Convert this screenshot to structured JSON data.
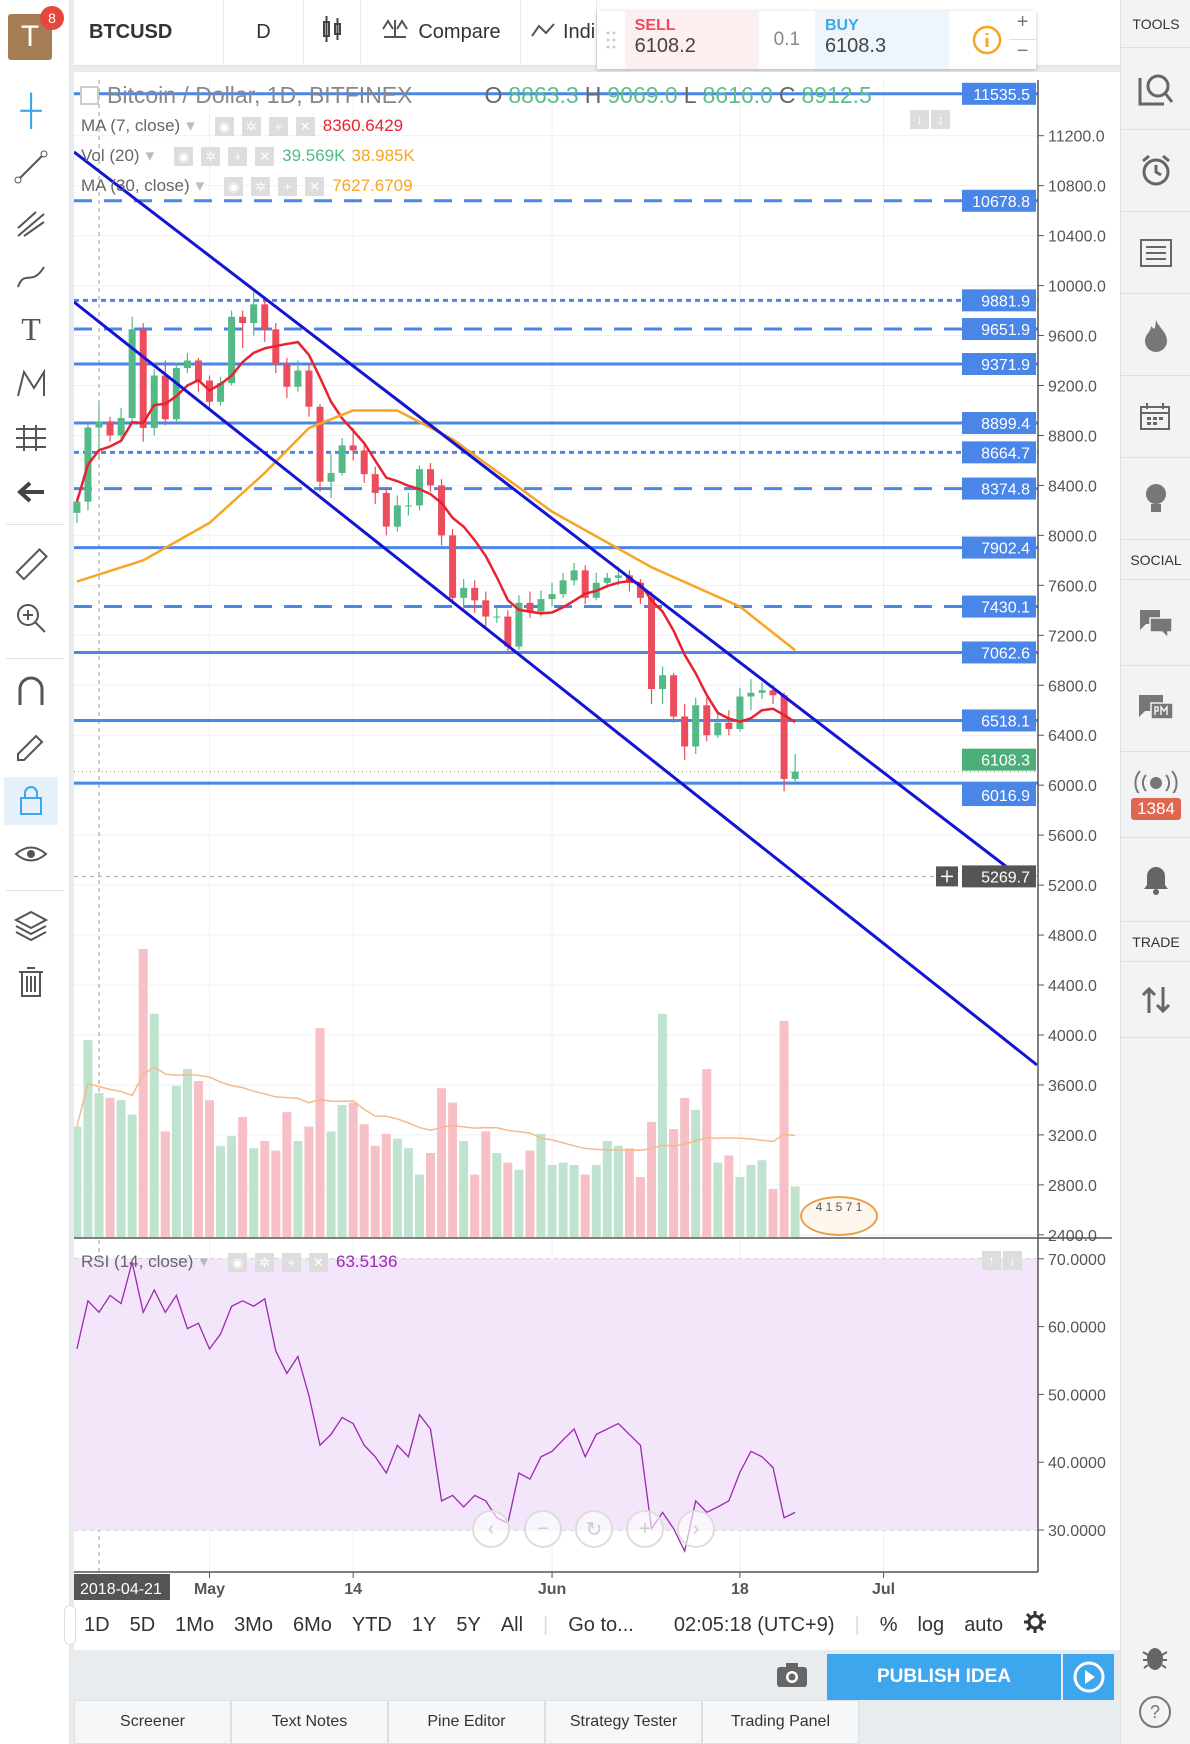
{
  "header": {
    "symbol": "BTCUSD",
    "interval": "D",
    "compare": "Compare",
    "indicators": "Indi",
    "avatar_letter": "T",
    "notif_count": "8"
  },
  "trade_widget": {
    "sell_label": "SELL",
    "sell_price": "6108.2",
    "qty": "0.1",
    "buy_label": "BUY",
    "buy_price": "6108.3",
    "plus": "+",
    "minus": "−"
  },
  "legend": {
    "title": "Bitcoin / Dollar, 1D, BITFINEX",
    "o_label": "O",
    "o": "8863.3",
    "h_label": "H",
    "h": "9069.0",
    "l_label": "L",
    "l": "8616.0",
    "c_label": "C",
    "c": "8912.5",
    "ma7_label": "MA (7, close)",
    "ma7_value": "8360.6429",
    "vol_label": "Vol (20)",
    "vol_value": "39.569K",
    "vol_ma_value": "38.985K",
    "ma30_label": "MA (30, close)",
    "ma30_value": "7627.6709",
    "rsi_label": "RSI (14, close)",
    "rsi_value": "63.5136"
  },
  "colors": {
    "up": "#53b987",
    "down": "#eb4d5c",
    "ma7": "#e8222e",
    "ma30": "#f6a623",
    "level": "#4a86e8",
    "trend": "#1414d4",
    "rsi": "#9c27b0",
    "rsi_band": "#f3e6fb",
    "accent": "#3ea6ec"
  },
  "chart_data": {
    "type": "candlestick",
    "first_day_offset": -2,
    "open": [
      8180,
      8270,
      8863.3,
      8912.5,
      8800,
      8940,
      9650,
      8860,
      9280,
      8930,
      9340,
      9400,
      9240,
      9070,
      9220,
      9750,
      9700,
      9850,
      9650,
      9370,
      9190,
      9320,
      9030,
      8430,
      8500,
      8720,
      8680,
      8490,
      8340,
      8070,
      8240,
      8240,
      8530,
      8400,
      8000,
      7500,
      7580,
      7480,
      7350,
      7350,
      7110,
      7460,
      7390,
      7490,
      7530,
      7640,
      7720,
      7500,
      7620,
      7660,
      7680,
      7620,
      7500,
      6770,
      6880,
      6550,
      6310,
      6640,
      6400,
      6500,
      6450,
      6710,
      6740,
      6760,
      6720,
      6050
    ],
    "high": [
      8300,
      8900,
      9069,
      8950,
      9020,
      9750,
      9700,
      9330,
      9400,
      9380,
      9460,
      9420,
      9280,
      9270,
      9800,
      9800,
      9950,
      9880,
      9700,
      9420,
      9400,
      9370,
      9050,
      8650,
      8780,
      8860,
      8750,
      8550,
      8380,
      8320,
      8340,
      8560,
      8580,
      8450,
      8050,
      7650,
      7640,
      7550,
      7420,
      7400,
      7520,
      7550,
      7560,
      7620,
      7700,
      7780,
      7760,
      7700,
      7700,
      7750,
      7720,
      7650,
      7550,
      6950,
      6900,
      6650,
      6700,
      6700,
      6600,
      6600,
      6780,
      6850,
      6820,
      6800,
      6740,
      6250
    ],
    "low": [
      8100,
      8200,
      8616,
      8750,
      8770,
      8900,
      8750,
      8800,
      8880,
      8900,
      9300,
      9150,
      9000,
      9040,
      9200,
      9500,
      9600,
      9550,
      9300,
      9100,
      9150,
      8950,
      8350,
      8300,
      8480,
      8600,
      8420,
      8250,
      8000,
      8030,
      8160,
      8200,
      8350,
      7920,
      7450,
      7400,
      7380,
      7270,
      7300,
      7050,
      7080,
      7340,
      7350,
      7430,
      7500,
      7600,
      7450,
      7480,
      7580,
      7600,
      7550,
      7450,
      6650,
      6650,
      6500,
      6200,
      6250,
      6350,
      6380,
      6400,
      6430,
      6600,
      6690,
      6650,
      5950,
      6020
    ],
    "close": [
      8270,
      8863.3,
      8912.5,
      8800,
      8940,
      9650,
      8860,
      9280,
      8930,
      9340,
      9400,
      9240,
      9070,
      9220,
      9750,
      9700,
      9850,
      9650,
      9370,
      9190,
      9320,
      9030,
      8430,
      8500,
      8720,
      8680,
      8490,
      8340,
      8070,
      8240,
      8240,
      8530,
      8400,
      8000,
      7500,
      7580,
      7480,
      7350,
      7350,
      7110,
      7460,
      7390,
      7490,
      7530,
      7640,
      7720,
      7500,
      7620,
      7660,
      7680,
      7620,
      7500,
      6770,
      6880,
      6550,
      6310,
      6640,
      6400,
      6500,
      6450,
      6710,
      6740,
      6760,
      6720,
      6050,
      6108.3
    ],
    "volume_k": [
      46,
      82,
      60,
      58,
      57,
      51,
      120,
      93,
      44,
      63,
      70,
      65,
      57,
      38,
      42,
      50,
      37,
      40,
      36,
      52,
      40,
      46,
      87,
      44,
      55,
      56,
      47,
      38,
      43,
      41,
      37,
      26,
      35,
      62,
      56,
      40,
      26,
      44,
      35,
      31,
      28,
      36,
      43,
      30,
      31,
      30,
      26,
      30,
      40,
      38,
      37,
      25,
      48,
      93,
      45,
      58,
      53,
      70,
      31,
      34,
      25,
      30,
      32,
      20,
      90,
      21
    ],
    "ma30_points": [
      [
        -2,
        7630
      ],
      [
        4,
        7800
      ],
      [
        10,
        8100
      ],
      [
        15,
        8500
      ],
      [
        19,
        8860
      ],
      [
        23,
        9000
      ],
      [
        27,
        9000
      ],
      [
        32,
        8770
      ],
      [
        41,
        8190
      ],
      [
        50,
        7745
      ],
      [
        58,
        7430
      ],
      [
        63,
        7080
      ]
    ],
    "rsi": [
      56.7,
      63.8,
      62.1,
      64.6,
      63.4,
      69.5,
      62.1,
      65.4,
      62.1,
      64.6,
      59.7,
      60.5,
      56.7,
      58.9,
      63,
      63.8,
      63,
      64.1,
      56.4,
      53.1,
      55.6,
      49.8,
      42.5,
      44.1,
      46.6,
      45.7,
      42.5,
      40.8,
      38.4,
      42.5,
      40.8,
      47,
      44.9,
      34.3,
      35.1,
      33.4,
      35.1,
      34.3,
      31.8,
      31,
      38.4,
      37.5,
      40.8,
      41.6,
      43.3,
      44.9,
      40.8,
      44.1,
      44.9,
      45.7,
      44.1,
      42.5,
      30.2,
      32.6,
      30.2,
      26.9,
      34.3,
      32.6,
      33.4,
      34.3,
      38.5,
      41.6,
      40.8,
      39.2,
      31.8,
      32.6
    ],
    "price_ticks": [
      "11200.0",
      "10800.0",
      "10400.0",
      "10000.0",
      "9600.0",
      "9200.0",
      "8800.0",
      "8400.0",
      "8000.0",
      "7600.0",
      "7200.0",
      "6800.0",
      "6400.0",
      "6000.0",
      "5600.0",
      "5200.0",
      "4800.0",
      "4400.0",
      "4000.0",
      "3600.0",
      "3200.0",
      "2800.0",
      "2400.0"
    ],
    "rsi_ticks": [
      "70.0000",
      "60.0000",
      "50.0000",
      "40.0000",
      "30.0000"
    ],
    "levels": [
      {
        "price": 11535.5,
        "label": "11535.5",
        "style": "solid"
      },
      {
        "price": 10678.8,
        "label": "10678.8",
        "style": "dashed"
      },
      {
        "price": 9881.9,
        "label": "9881.9",
        "style": "dotted"
      },
      {
        "price": 9651.9,
        "label": "9651.9",
        "style": "dashed"
      },
      {
        "price": 9371.9,
        "label": "9371.9",
        "style": "solid"
      },
      {
        "price": 8899.4,
        "label": "8899.4",
        "style": "solid"
      },
      {
        "price": 8664.7,
        "label": "8664.7",
        "style": "dotted"
      },
      {
        "price": 8374.8,
        "label": "8374.8",
        "style": "dashed"
      },
      {
        "price": 7902.4,
        "label": "7902.4",
        "style": "solid"
      },
      {
        "price": 7430.1,
        "label": "7430.1",
        "style": "dashed"
      },
      {
        "price": 7062.6,
        "label": "7062.6",
        "style": "solid"
      },
      {
        "price": 6518.1,
        "label": "6518.1",
        "style": "solid"
      },
      {
        "price": 6016.9,
        "label": "6016.9",
        "style": "solid"
      }
    ],
    "last_price": {
      "price": 6108.3,
      "label": "6108.3"
    },
    "crosshair": {
      "price": 5269.7,
      "label": "5269.7",
      "date": "2018-04-21",
      "day": 0
    },
    "time_ticks": [
      {
        "label": "May",
        "day": 10
      },
      {
        "label": "14",
        "day": 23
      },
      {
        "label": "Jun",
        "day": 41
      },
      {
        "label": "18",
        "day": 58
      },
      {
        "label": "Jul",
        "day": 71
      }
    ]
  },
  "watermark": "4 1 5 7 1",
  "bottom": {
    "ranges": [
      "1D",
      "5D",
      "1Mo",
      "3Mo",
      "6Mo",
      "YTD",
      "1Y",
      "5Y",
      "All"
    ],
    "goto": "Go to...",
    "clock": "02:05:18 (UTC+9)",
    "percent": "%",
    "log": "log",
    "auto": "auto",
    "publish": "PUBLISH IDEA"
  },
  "tabs": [
    "Screener",
    "Text Notes",
    "Pine Editor",
    "Strategy Tester",
    "Trading Panel"
  ],
  "rightbar": {
    "tools": "TOOLS",
    "social": "SOCIAL",
    "trade": "TRADE",
    "streams_count": "1384"
  }
}
